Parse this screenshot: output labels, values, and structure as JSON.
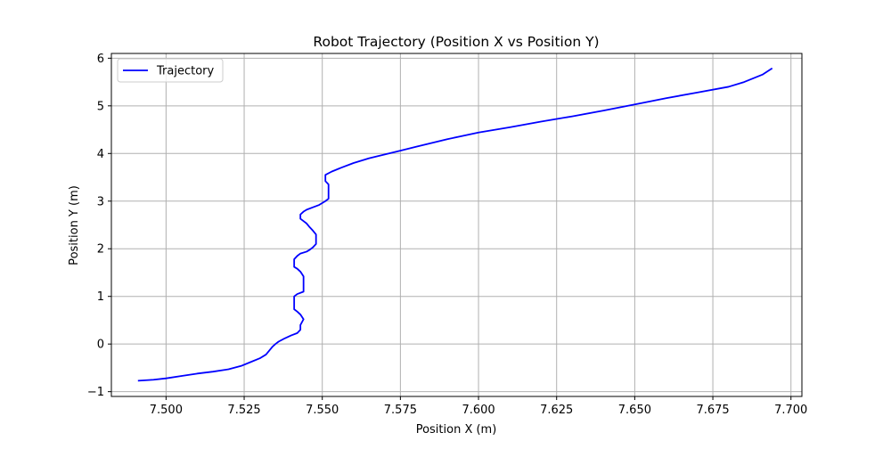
{
  "chart_data": {
    "type": "line",
    "title": "Robot Trajectory (Position X vs Position Y)",
    "xlabel": "Position X (m)",
    "ylabel": "Position Y (m)",
    "xlim": [
      7.4825,
      7.7035
    ],
    "ylim": [
      -1.1,
      6.1
    ],
    "xticks": [
      7.5,
      7.525,
      7.55,
      7.575,
      7.6,
      7.625,
      7.65,
      7.675,
      7.7
    ],
    "xtick_labels": [
      "7.500",
      "7.525",
      "7.550",
      "7.575",
      "7.600",
      "7.625",
      "7.650",
      "7.675",
      "7.700"
    ],
    "yticks": [
      -1,
      0,
      1,
      2,
      3,
      4,
      5,
      6
    ],
    "ytick_labels": [
      "−1",
      "0",
      "1",
      "2",
      "3",
      "4",
      "5",
      "6"
    ],
    "grid": true,
    "legend_position": "upper-left",
    "series": [
      {
        "name": "Trajectory",
        "color": "#0000ff",
        "x": [
          7.491,
          7.496,
          7.5,
          7.505,
          7.51,
          7.515,
          7.52,
          7.524,
          7.527,
          7.53,
          7.532,
          7.533,
          7.534,
          7.535,
          7.536,
          7.538,
          7.54,
          7.542,
          7.543,
          7.543,
          7.544,
          7.543,
          7.542,
          7.541,
          7.541,
          7.541,
          7.542,
          7.544,
          7.544,
          7.544,
          7.543,
          7.542,
          7.541,
          7.541,
          7.541,
          7.542,
          7.543,
          7.545,
          7.546,
          7.547,
          7.548,
          7.548,
          7.548,
          7.547,
          7.546,
          7.545,
          7.544,
          7.543,
          7.543,
          7.544,
          7.545,
          7.547,
          7.549,
          7.551,
          7.552,
          7.552,
          7.552,
          7.551,
          7.551,
          7.551,
          7.553,
          7.556,
          7.56,
          7.565,
          7.57,
          7.575,
          7.58,
          7.585,
          7.59,
          7.595,
          7.6,
          7.61,
          7.62,
          7.63,
          7.64,
          7.65,
          7.66,
          7.67,
          7.68,
          7.685,
          7.688,
          7.691,
          7.694
        ],
        "y": [
          -0.77,
          -0.75,
          -0.72,
          -0.67,
          -0.62,
          -0.58,
          -0.53,
          -0.46,
          -0.38,
          -0.3,
          -0.22,
          -0.14,
          -0.06,
          0.0,
          0.05,
          0.12,
          0.18,
          0.23,
          0.3,
          0.4,
          0.52,
          0.62,
          0.68,
          0.73,
          0.85,
          1.0,
          1.05,
          1.1,
          1.25,
          1.42,
          1.52,
          1.58,
          1.62,
          1.7,
          1.78,
          1.85,
          1.9,
          1.94,
          1.98,
          2.03,
          2.1,
          2.2,
          2.3,
          2.38,
          2.45,
          2.53,
          2.58,
          2.63,
          2.72,
          2.78,
          2.82,
          2.87,
          2.92,
          3.0,
          3.05,
          3.2,
          3.35,
          3.42,
          3.5,
          3.55,
          3.62,
          3.7,
          3.8,
          3.9,
          3.98,
          4.06,
          4.14,
          4.22,
          4.3,
          4.37,
          4.44,
          4.55,
          4.67,
          4.78,
          4.9,
          5.03,
          5.16,
          5.28,
          5.4,
          5.5,
          5.58,
          5.66,
          5.79
        ]
      }
    ]
  }
}
